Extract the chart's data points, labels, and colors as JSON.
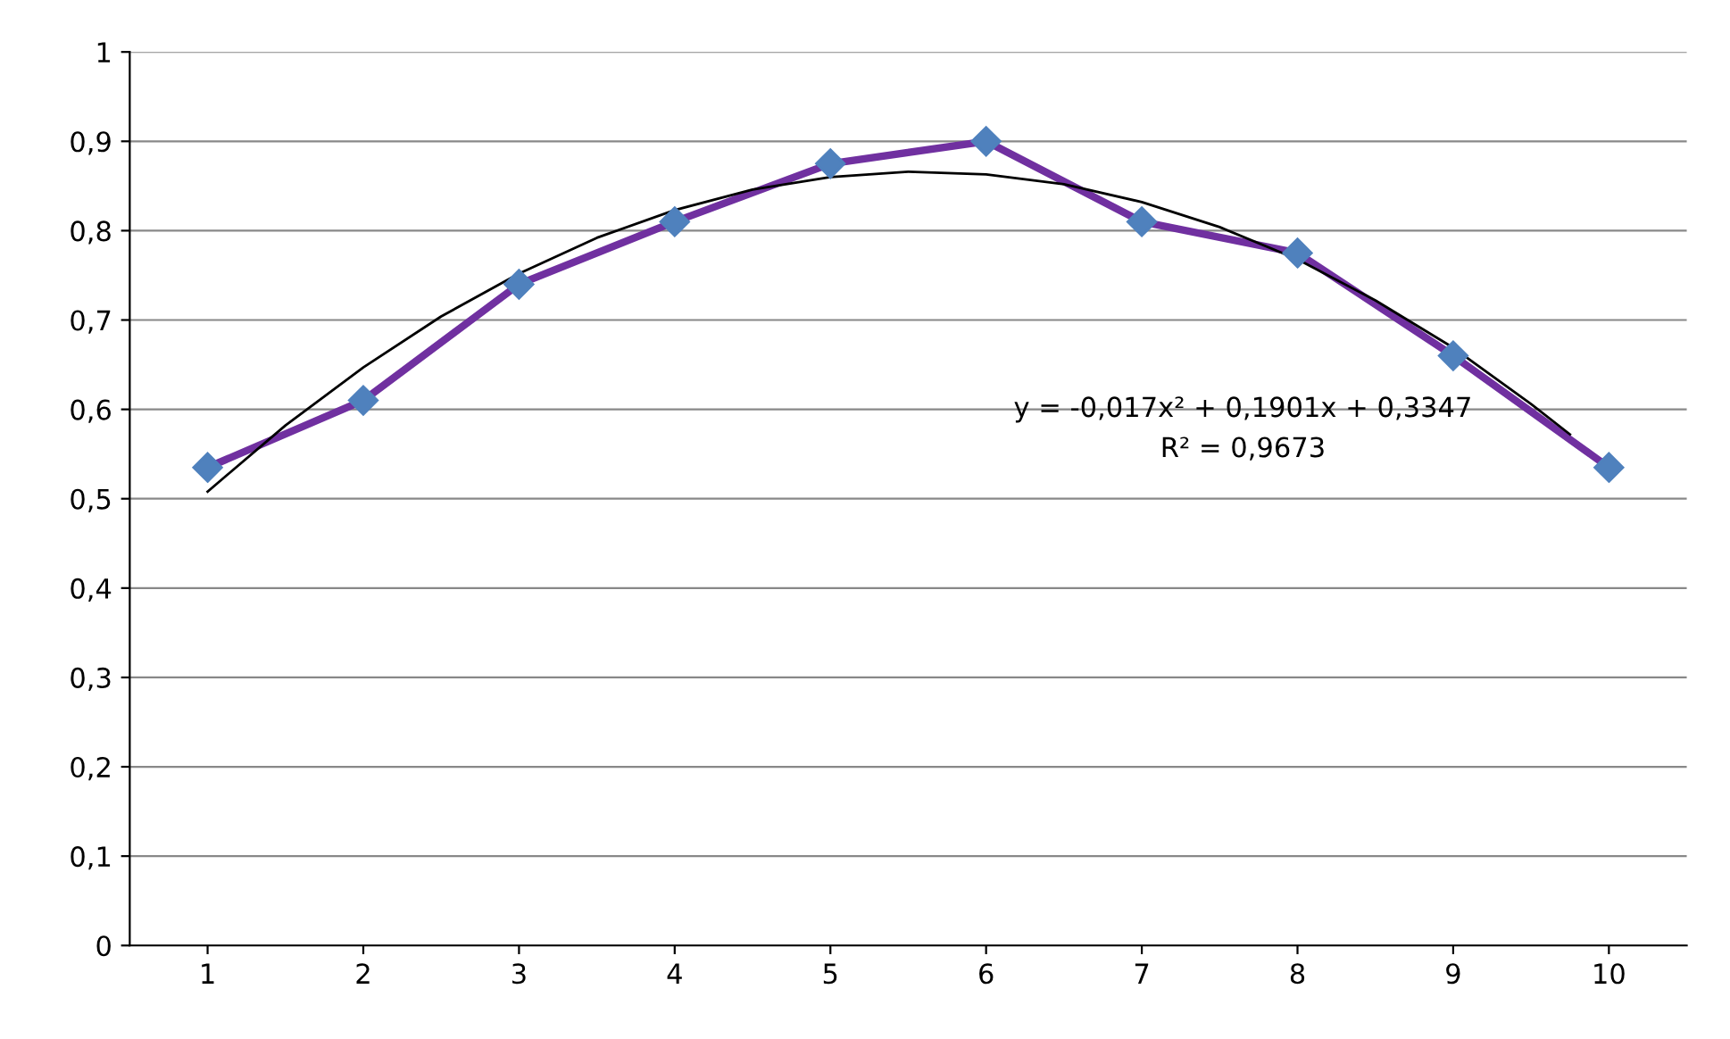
{
  "chart_data": {
    "type": "line",
    "x": [
      1,
      2,
      3,
      4,
      5,
      6,
      7,
      8,
      9,
      10
    ],
    "series": [
      {
        "color": "#7030a0",
        "colors": [
          "#4f81bd",
          "#4f81bd",
          "#4f81bd",
          "#4f81bd",
          "#4f81bd",
          "#4f81bd",
          "#4f81bd",
          "#4f81bd",
          "#4f81bd",
          "#4f81bd"
        ],
        "marker": "diamond",
        "values": [
          0.535,
          0.61,
          0.74,
          0.81,
          0.875,
          0.9,
          0.81,
          0.775,
          0.66,
          0.535
        ]
      },
      {
        "color": "#000000",
        "marker": "none",
        "x": [
          1,
          1.5,
          2,
          2.5,
          3,
          3.5,
          4,
          4.5,
          5,
          5.5,
          6,
          6.5,
          7,
          7.5,
          8,
          8.5,
          9,
          9.5,
          9.75
        ],
        "values": [
          0.508,
          0.582,
          0.647,
          0.704,
          0.752,
          0.792,
          0.823,
          0.846,
          0.86,
          0.866,
          0.863,
          0.852,
          0.832,
          0.804,
          0.768,
          0.722,
          0.669,
          0.606,
          0.572
        ]
      }
    ],
    "xlim": [
      0.5,
      10.5
    ],
    "xticks": [
      1,
      2,
      3,
      4,
      5,
      6,
      7,
      8,
      9,
      10
    ],
    "ylim": [
      0,
      1
    ],
    "yticks": [
      0,
      {
        "value": 0.1,
        "label": "0,1"
      },
      {
        "value": 0.2,
        "label": "0,2"
      },
      {
        "value": 0.3,
        "label": "0,3"
      },
      {
        "value": 0.4,
        "label": "0,4"
      },
      {
        "value": 0.5,
        "label": "0,5"
      },
      {
        "value": 0.6,
        "label": "0,6"
      },
      {
        "value": 0.7,
        "label": "0,7"
      },
      {
        "value": 0.8,
        "label": "0,8"
      },
      {
        "value": 0.9,
        "label": "0,9"
      },
      1
    ],
    "grid": "y",
    "annotations": [
      "y = -0,017x² + 0,1901x + 0,3347",
      "R² = 0,9673"
    ]
  }
}
